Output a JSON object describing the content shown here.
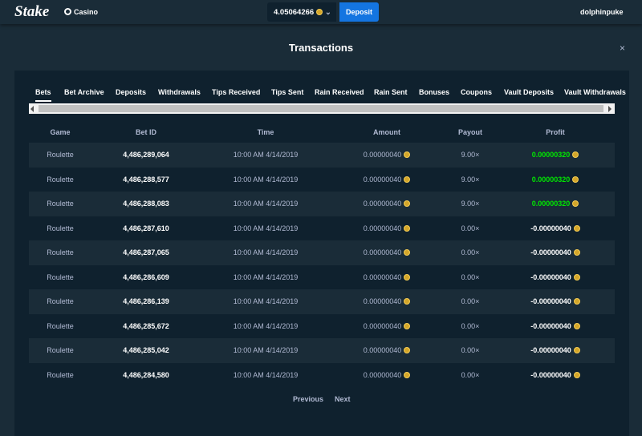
{
  "header": {
    "logo": "Stake",
    "casino": "Casino",
    "balance": "4.05064266",
    "deposit": "Deposit",
    "username": "dolphinpuke"
  },
  "modal": {
    "title": "Transactions",
    "close": "×",
    "tabs": [
      "Bets",
      "Bet Archive",
      "Deposits",
      "Withdrawals",
      "Tips Received",
      "Tips Sent",
      "Rain Received",
      "Rain Sent",
      "Bonuses",
      "Coupons",
      "Vault Deposits",
      "Vault Withdrawals"
    ],
    "table": {
      "headers": [
        "Game",
        "Bet ID",
        "Time",
        "Amount",
        "Payout",
        "Profit"
      ],
      "rows": [
        [
          "Roulette",
          "4,486,289,064",
          "10:00 AM 4/14/2019",
          "0.00000040",
          "9.00×",
          "0.00000320"
        ],
        [
          "Roulette",
          "4,486,288,577",
          "10:00 AM 4/14/2019",
          "0.00000040",
          "9.00×",
          "0.00000320"
        ],
        [
          "Roulette",
          "4,486,288,083",
          "10:00 AM 4/14/2019",
          "0.00000040",
          "9.00×",
          "0.00000320"
        ],
        [
          "Roulette",
          "4,486,287,610",
          "10:00 AM 4/14/2019",
          "0.00000040",
          "0.00×",
          "-0.00000040"
        ],
        [
          "Roulette",
          "4,486,287,065",
          "10:00 AM 4/14/2019",
          "0.00000040",
          "0.00×",
          "-0.00000040"
        ],
        [
          "Roulette",
          "4,486,286,609",
          "10:00 AM 4/14/2019",
          "0.00000040",
          "0.00×",
          "-0.00000040"
        ],
        [
          "Roulette",
          "4,486,286,139",
          "10:00 AM 4/14/2019",
          "0.00000040",
          "0.00×",
          "-0.00000040"
        ],
        [
          "Roulette",
          "4,486,285,672",
          "10:00 AM 4/14/2019",
          "0.00000040",
          "0.00×",
          "-0.00000040"
        ],
        [
          "Roulette",
          "4,486,285,042",
          "10:00 AM 4/14/2019",
          "0.00000040",
          "0.00×",
          "-0.00000040"
        ],
        [
          "Roulette",
          "4,486,284,580",
          "10:00 AM 4/14/2019",
          "0.00000040",
          "0.00×",
          "-0.00000040"
        ]
      ]
    },
    "pagination": {
      "previous": "Previous",
      "next": "Next"
    }
  }
}
